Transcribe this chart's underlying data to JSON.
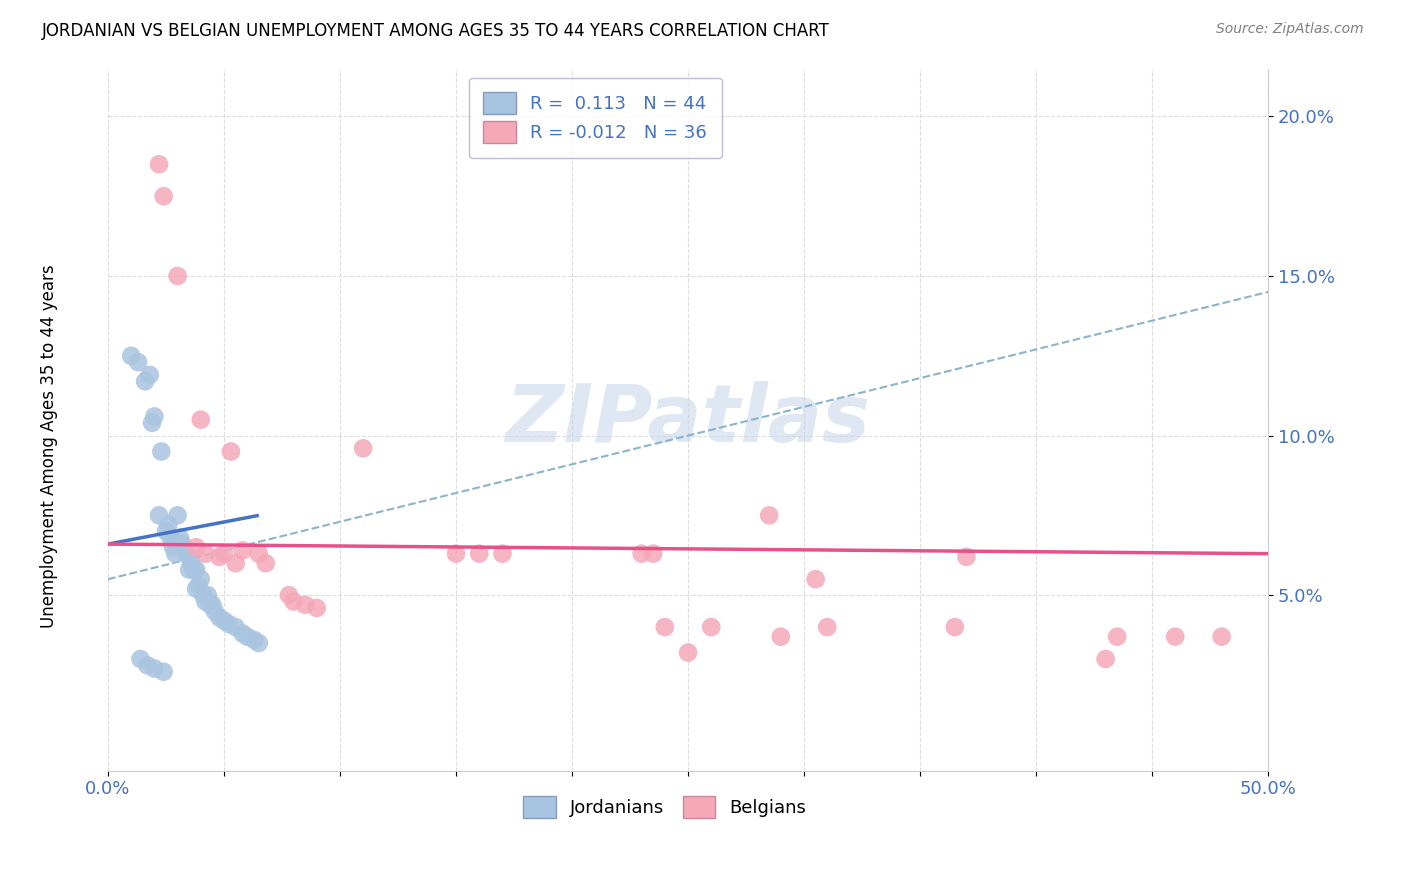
{
  "title": "JORDANIAN VS BELGIAN UNEMPLOYMENT AMONG AGES 35 TO 44 YEARS CORRELATION CHART",
  "source": "Source: ZipAtlas.com",
  "ylabel": "Unemployment Among Ages 35 to 44 years",
  "xlim": [
    0.0,
    0.5
  ],
  "ylim": [
    -0.005,
    0.215
  ],
  "yticks": [
    0.05,
    0.1,
    0.15,
    0.2
  ],
  "ytick_labels": [
    "5.0%",
    "10.0%",
    "15.0%",
    "20.0%"
  ],
  "xticks": [
    0.0,
    0.05,
    0.1,
    0.15,
    0.2,
    0.25,
    0.3,
    0.35,
    0.4,
    0.45,
    0.5
  ],
  "legend_r1": "R =  0.113",
  "legend_n1": "N = 44",
  "legend_r2": "R = -0.012",
  "legend_n2": "N = 36",
  "jordan_color": "#a8c4e0",
  "belgian_color": "#f4a8b8",
  "jordan_line_color": "#4472c4",
  "belgian_line_color": "#e8508a",
  "watermark_text": "ZIPatlas",
  "watermark_color": "#c8d8ea",
  "jordan_scatter": [
    [
      0.01,
      0.125
    ],
    [
      0.013,
      0.123
    ],
    [
      0.016,
      0.117
    ],
    [
      0.018,
      0.119
    ],
    [
      0.019,
      0.104
    ],
    [
      0.02,
      0.106
    ],
    [
      0.022,
      0.075
    ],
    [
      0.023,
      0.095
    ],
    [
      0.025,
      0.07
    ],
    [
      0.026,
      0.072
    ],
    [
      0.027,
      0.068
    ],
    [
      0.028,
      0.065
    ],
    [
      0.029,
      0.063
    ],
    [
      0.03,
      0.075
    ],
    [
      0.031,
      0.068
    ],
    [
      0.032,
      0.066
    ],
    [
      0.033,
      0.065
    ],
    [
      0.034,
      0.063
    ],
    [
      0.035,
      0.062
    ],
    [
      0.035,
      0.058
    ],
    [
      0.036,
      0.06
    ],
    [
      0.037,
      0.058
    ],
    [
      0.038,
      0.058
    ],
    [
      0.038,
      0.052
    ],
    [
      0.039,
      0.053
    ],
    [
      0.04,
      0.055
    ],
    [
      0.041,
      0.05
    ],
    [
      0.042,
      0.048
    ],
    [
      0.043,
      0.05
    ],
    [
      0.044,
      0.047
    ],
    [
      0.045,
      0.047
    ],
    [
      0.046,
      0.045
    ],
    [
      0.048,
      0.043
    ],
    [
      0.05,
      0.042
    ],
    [
      0.052,
      0.041
    ],
    [
      0.055,
      0.04
    ],
    [
      0.058,
      0.038
    ],
    [
      0.06,
      0.037
    ],
    [
      0.063,
      0.036
    ],
    [
      0.065,
      0.035
    ],
    [
      0.014,
      0.03
    ],
    [
      0.017,
      0.028
    ],
    [
      0.02,
      0.027
    ],
    [
      0.024,
      0.026
    ]
  ],
  "belgian_scatter": [
    [
      0.022,
      0.185
    ],
    [
      0.024,
      0.175
    ],
    [
      0.03,
      0.15
    ],
    [
      0.04,
      0.105
    ],
    [
      0.053,
      0.095
    ],
    [
      0.038,
      0.065
    ],
    [
      0.042,
      0.063
    ],
    [
      0.048,
      0.062
    ],
    [
      0.05,
      0.063
    ],
    [
      0.055,
      0.06
    ],
    [
      0.058,
      0.064
    ],
    [
      0.065,
      0.063
    ],
    [
      0.068,
      0.06
    ],
    [
      0.078,
      0.05
    ],
    [
      0.08,
      0.048
    ],
    [
      0.085,
      0.047
    ],
    [
      0.09,
      0.046
    ],
    [
      0.11,
      0.096
    ],
    [
      0.15,
      0.063
    ],
    [
      0.16,
      0.063
    ],
    [
      0.17,
      0.063
    ],
    [
      0.23,
      0.063
    ],
    [
      0.235,
      0.063
    ],
    [
      0.305,
      0.055
    ],
    [
      0.37,
      0.062
    ],
    [
      0.285,
      0.075
    ],
    [
      0.24,
      0.04
    ],
    [
      0.26,
      0.04
    ],
    [
      0.31,
      0.04
    ],
    [
      0.365,
      0.04
    ],
    [
      0.29,
      0.037
    ],
    [
      0.435,
      0.037
    ],
    [
      0.46,
      0.037
    ],
    [
      0.48,
      0.037
    ],
    [
      0.25,
      0.032
    ],
    [
      0.43,
      0.03
    ]
  ],
  "jordan_trend_x": [
    0.0,
    0.065
  ],
  "jordan_trend_y": [
    0.066,
    0.075
  ],
  "belgian_trend_x": [
    0.0,
    0.5
  ],
  "belgian_trend_y": [
    0.066,
    0.063
  ],
  "dashed_line_x": [
    0.0,
    0.5
  ],
  "dashed_line_y": [
    0.055,
    0.145
  ],
  "dashed_line_color": "#8ab4cc"
}
